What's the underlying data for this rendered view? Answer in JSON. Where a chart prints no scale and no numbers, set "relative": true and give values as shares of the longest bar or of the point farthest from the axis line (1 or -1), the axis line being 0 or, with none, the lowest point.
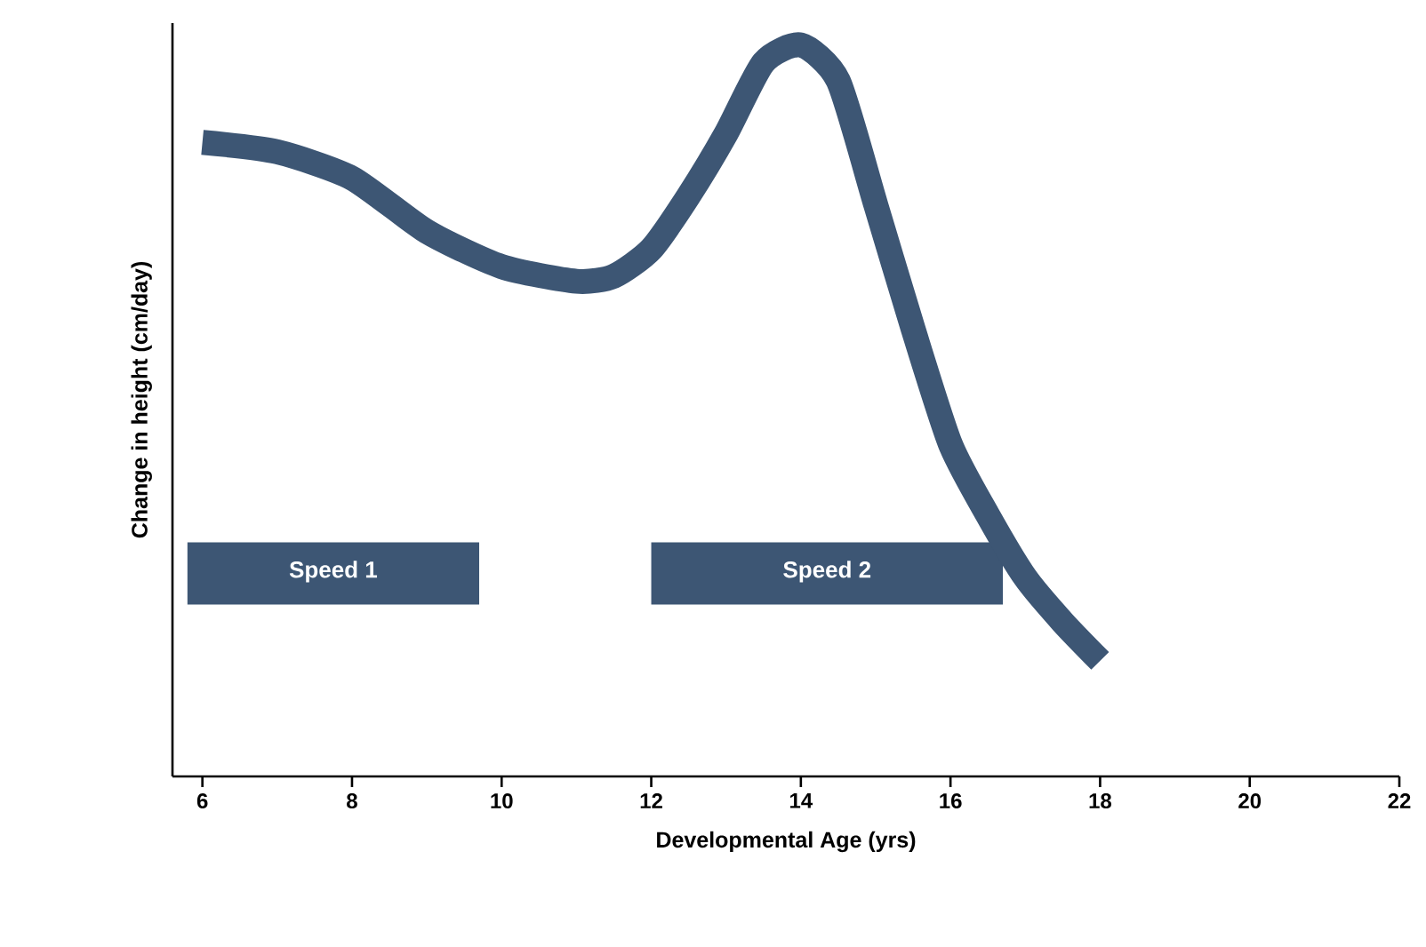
{
  "chart_data": {
    "type": "line",
    "xlabel": "Developmental Age (yrs)",
    "ylabel": "Change in height (cm/day)",
    "relative": true,
    "xlim": [
      5.6,
      22
    ],
    "xticks": [
      6,
      8,
      10,
      12,
      14,
      16,
      18,
      20,
      22
    ],
    "series": [
      {
        "color": "#3d5674",
        "x": [
          6,
          7,
          8,
          9,
          10,
          11,
          11.5,
          12,
          12.5,
          13,
          13.5,
          14,
          14.5,
          15,
          15.5,
          16,
          16.5,
          17,
          17.5,
          18
        ],
        "values": [
          0.867,
          0.854,
          0.818,
          0.745,
          0.697,
          0.677,
          0.684,
          0.721,
          0.794,
          0.879,
          0.976,
          1.0,
          0.951,
          0.782,
          0.612,
          0.454,
          0.357,
          0.272,
          0.211,
          0.158
        ]
      }
    ],
    "bands": [
      {
        "axis": "x",
        "from": 5.8,
        "to": 9.7,
        "label": "Speed 1",
        "color": "#3d5674"
      },
      {
        "axis": "x",
        "from": 12,
        "to": 16.7,
        "label": "Speed 2",
        "color": "#3d5674"
      }
    ],
    "marker": "none"
  }
}
